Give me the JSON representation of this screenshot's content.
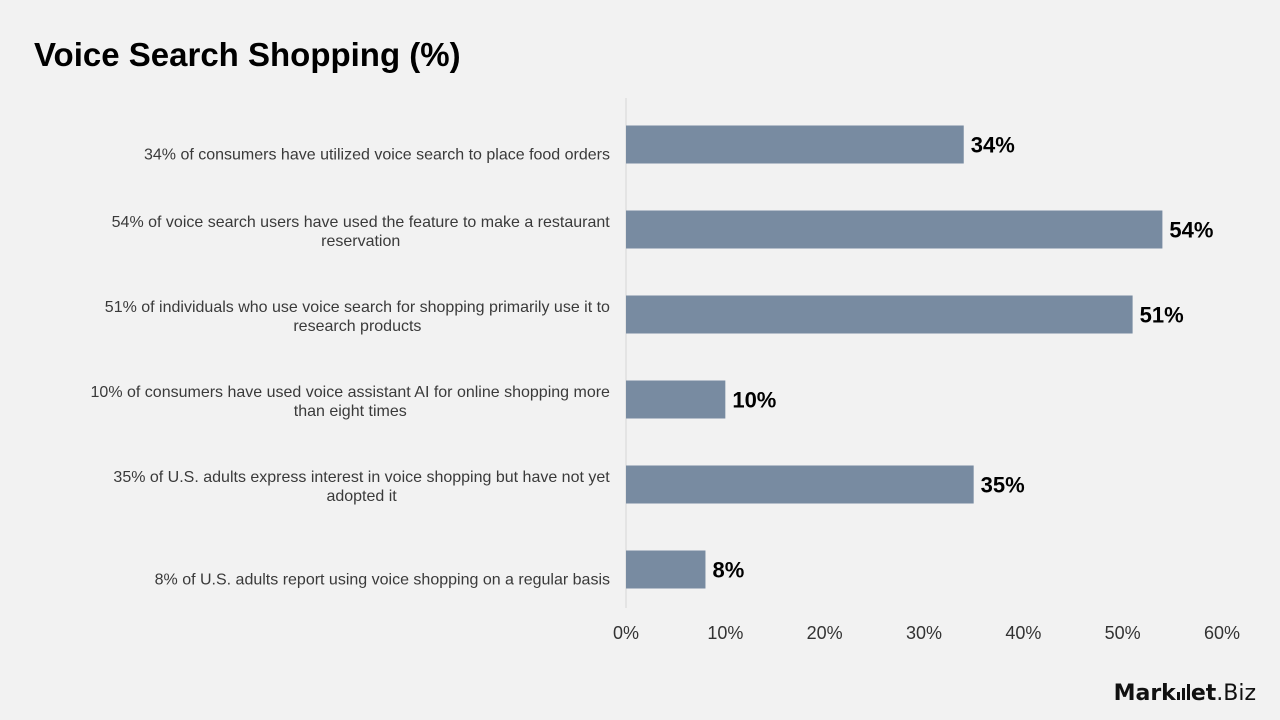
{
  "page": {
    "title": "Voice Search Shopping (%)"
  },
  "logo": {
    "part1": "Mark",
    "part2": "et",
    "part3": ".Biz"
  },
  "chart_data": {
    "type": "bar",
    "orientation": "horizontal",
    "title": "Voice Search Shopping (%)",
    "categories": [
      "34% of consumers have utilized voice search to place food orders",
      "54% of voice search users have used the feature to make a restaurant reservation",
      "51% of individuals who use voice search for shopping primarily use it to research products",
      "10% of consumers have used voice assistant AI for online shopping more than eight times",
      "35% of U.S. adults express interest in voice shopping but have not yet adopted it",
      "8% of U.S. adults report using voice shopping on a regular basis"
    ],
    "category_lines": [
      [
        "34% of consumers have utilized voice search to place food orders"
      ],
      [
        "54% of voice search users have used the feature to make a restaurant",
        "reservation"
      ],
      [
        "51% of individuals who use voice search for shopping primarily use it to",
        "research products"
      ],
      [
        "10% of consumers have used voice assistant AI for online shopping more",
        "than eight times"
      ],
      [
        "35% of U.S. adults express interest in voice shopping but have not yet",
        "adopted it"
      ],
      [
        "8% of U.S. adults report using voice shopping on a regular basis"
      ]
    ],
    "values": [
      34,
      54,
      51,
      10,
      35,
      8
    ],
    "value_labels": [
      "34%",
      "54%",
      "51%",
      "10%",
      "35%",
      "8%"
    ],
    "xlim": [
      0,
      60
    ],
    "x_ticks": [
      0,
      10,
      20,
      30,
      40,
      50,
      60
    ],
    "x_tick_labels": [
      "0%",
      "10%",
      "20%",
      "30%",
      "40%",
      "50%",
      "60%"
    ],
    "grid": false,
    "legend": "none",
    "colors": {
      "bar": "#788ba1",
      "axis": "#d6d6d6"
    }
  }
}
